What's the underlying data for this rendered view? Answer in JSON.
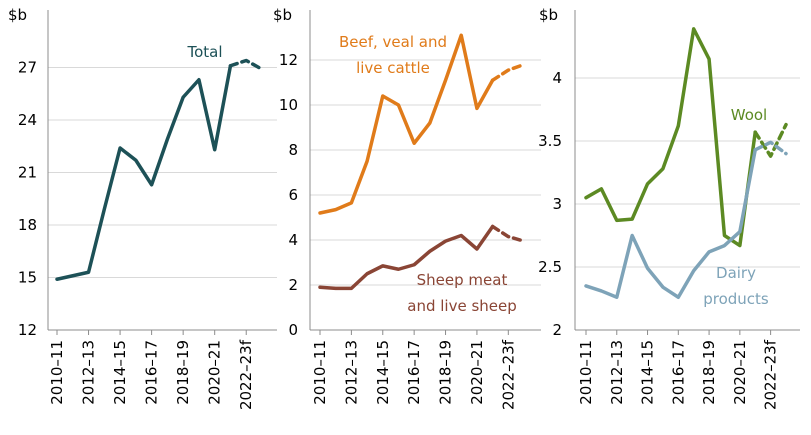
{
  "chart_data": [
    {
      "type": "line",
      "unit": "$b",
      "ylim": [
        12,
        30
      ],
      "yticks": [
        12,
        15,
        18,
        21,
        24,
        27
      ],
      "x": [
        "2010–11",
        "2011–12",
        "2012–13",
        "2013–14",
        "2014–15",
        "2015–16",
        "2016–17",
        "2017–18",
        "2018–19",
        "2019–20",
        "2020–21",
        "2021–22",
        "2022–23f",
        "2023–24f"
      ],
      "xtick_labels": [
        "2010–11",
        "2012–13",
        "2014–15",
        "2016–17",
        "2018–19",
        "2020–21",
        "2022–23f"
      ],
      "forecast_from_index": 11,
      "series": [
        {
          "name": "Total",
          "color": "#1d5157",
          "values": [
            14.9,
            15.1,
            15.3,
            18.9,
            22.4,
            21.7,
            20.3,
            22.9,
            25.3,
            26.3,
            22.3,
            27.1,
            27.4,
            26.9
          ]
        }
      ]
    },
    {
      "type": "line",
      "unit": "$b",
      "ylim": [
        0,
        14
      ],
      "yticks": [
        0,
        2,
        4,
        6,
        8,
        10,
        12
      ],
      "x": [
        "2010–11",
        "2011–12",
        "2012–13",
        "2013–14",
        "2014–15",
        "2015–16",
        "2016–17",
        "2017–18",
        "2018–19",
        "2019–20",
        "2020–21",
        "2021–22",
        "2022–23f",
        "2023–24f"
      ],
      "xtick_labels": [
        "2010–11",
        "2012–13",
        "2014–15",
        "2016–17",
        "2018–19",
        "2020–21",
        "2022–23f"
      ],
      "forecast_from_index": 11,
      "series": [
        {
          "name": "Beef, veal and live cattle",
          "label_lines": [
            "Beef, veal and",
            "live cattle"
          ],
          "color": "#e07b1a",
          "values": [
            5.2,
            5.35,
            5.65,
            7.5,
            10.4,
            10.0,
            8.3,
            9.2,
            11.1,
            13.1,
            9.85,
            11.1,
            11.55,
            11.8
          ]
        },
        {
          "name": "Sheep meat and live sheep",
          "label_lines": [
            "Sheep meat",
            "and live sheep"
          ],
          "color": "#8a4535",
          "values": [
            1.9,
            1.85,
            1.85,
            2.5,
            2.85,
            2.7,
            2.9,
            3.5,
            3.95,
            4.2,
            3.6,
            4.6,
            4.15,
            3.95
          ]
        }
      ]
    },
    {
      "type": "line",
      "unit": "$b",
      "ylim": [
        2,
        4.5
      ],
      "yticks": [
        2,
        2.5,
        3,
        3.5,
        4
      ],
      "x": [
        "2010–11",
        "2011–12",
        "2012–13",
        "2013–14",
        "2014–15",
        "2015–16",
        "2016–17",
        "2017–18",
        "2018–19",
        "2019–20",
        "2020–21",
        "2021–22",
        "2022–23f",
        "2023–24f"
      ],
      "xtick_labels": [
        "2010–11",
        "2012–13",
        "2014–15",
        "2016–17",
        "2018–19",
        "2020–21",
        "2022–23f"
      ],
      "forecast_from_index": 11,
      "series": [
        {
          "name": "Wool",
          "label_lines": [
            "Wool"
          ],
          "color": "#5c8a23",
          "values": [
            3.05,
            3.12,
            2.87,
            2.88,
            3.16,
            3.28,
            3.62,
            4.39,
            4.15,
            2.75,
            2.67,
            3.57,
            3.38,
            3.63
          ]
        },
        {
          "name": "Dairy products",
          "label_lines": [
            "Dairy",
            "products"
          ],
          "color": "#7ea3b8",
          "values": [
            2.35,
            2.31,
            2.26,
            2.75,
            2.49,
            2.34,
            2.26,
            2.47,
            2.62,
            2.67,
            2.78,
            3.43,
            3.49,
            3.4
          ]
        }
      ]
    }
  ]
}
